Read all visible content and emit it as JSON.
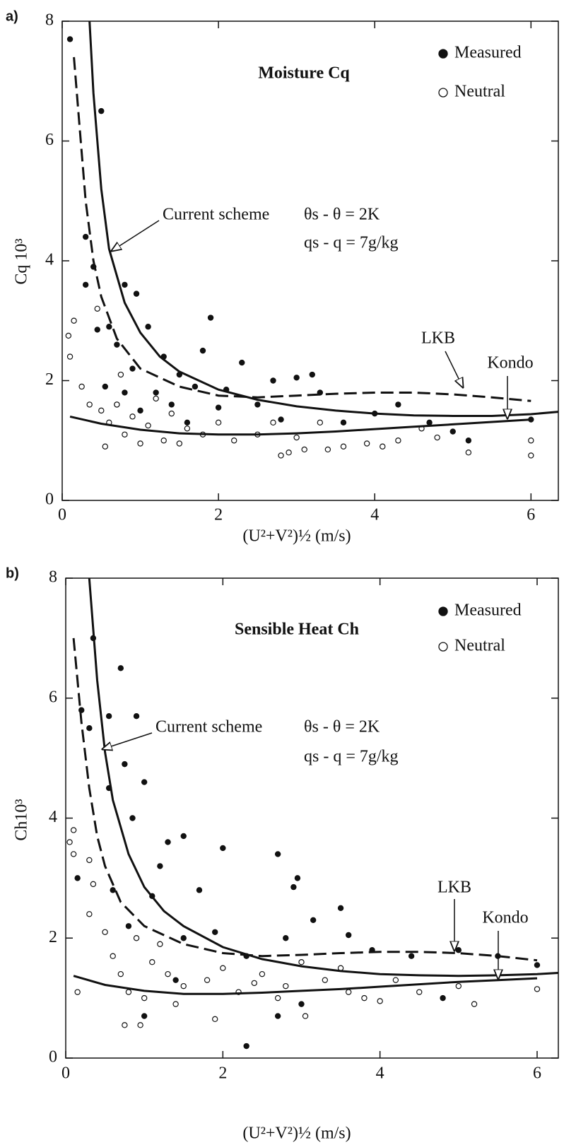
{
  "chart_data": [
    {
      "type": "scatter",
      "panel_label": "a)",
      "title": "Moisture Cq",
      "xlabel": "(U²+V²)½ (m/s)",
      "ylabel": "Cq 10³",
      "annotations": [
        "θs - θ = 2K",
        "qs - q = 7g/kg"
      ],
      "xlim": [
        0,
        6.35
      ],
      "ylim": [
        0,
        8
      ],
      "xticks": [
        0,
        2,
        4,
        6
      ],
      "yticks": [
        0,
        2,
        4,
        6,
        8
      ],
      "series": [
        {
          "name": "Measured",
          "type": "scatter",
          "marker": "filled",
          "color": "#111111",
          "x": [
            0.1,
            0.5,
            0.3,
            0.4,
            0.3,
            0.8,
            0.95,
            0.45,
            0.6,
            0.7,
            1.1,
            1.9,
            1.8,
            1.3,
            0.9,
            1.5,
            2.3,
            0.55,
            0.8,
            1.2,
            1.7,
            2.1,
            2.7,
            3.0,
            3.2,
            0.7,
            1.0,
            1.4,
            2.0,
            2.5,
            3.3,
            3.6,
            4.0,
            4.3,
            4.7,
            5.0,
            5.2,
            6.0,
            2.8,
            1.6
          ],
          "values": [
            7.7,
            6.5,
            4.4,
            3.9,
            3.6,
            3.6,
            3.45,
            2.85,
            2.9,
            2.6,
            2.9,
            3.05,
            2.5,
            2.4,
            2.2,
            2.1,
            2.3,
            1.9,
            1.8,
            1.8,
            1.9,
            1.85,
            2.0,
            2.05,
            2.1,
            1.6,
            1.5,
            1.6,
            1.55,
            1.6,
            1.8,
            1.3,
            1.45,
            1.6,
            1.3,
            1.15,
            1.0,
            1.35,
            1.35,
            1.3
          ]
        },
        {
          "name": "Neutral",
          "type": "scatter",
          "marker": "open",
          "color": "#111111",
          "x": [
            0.08,
            0.15,
            0.1,
            0.45,
            0.25,
            0.35,
            0.5,
            0.6,
            0.55,
            0.75,
            0.8,
            0.9,
            1.0,
            1.1,
            1.3,
            1.5,
            1.2,
            1.6,
            1.8,
            2.0,
            2.2,
            2.5,
            2.7,
            2.8,
            2.9,
            3.0,
            3.1,
            3.4,
            3.6,
            3.9,
            4.1,
            4.3,
            4.8,
            5.2,
            6.0,
            6.0,
            4.6,
            3.3,
            0.7,
            1.4
          ],
          "values": [
            2.75,
            3.0,
            2.4,
            3.2,
            1.9,
            1.6,
            1.5,
            1.3,
            0.9,
            2.1,
            1.1,
            1.4,
            0.95,
            1.25,
            1.0,
            0.95,
            1.7,
            1.2,
            1.1,
            1.3,
            1.0,
            1.1,
            1.3,
            0.75,
            0.8,
            1.05,
            0.85,
            0.85,
            0.9,
            0.95,
            0.9,
            1.0,
            1.05,
            0.8,
            0.75,
            1.0,
            1.2,
            1.3,
            1.6,
            1.45
          ]
        },
        {
          "name": "Current scheme",
          "type": "line",
          "style": "solid",
          "color": "#111111",
          "x": [
            0.35,
            0.4,
            0.5,
            0.6,
            0.8,
            1.0,
            1.25,
            1.5,
            2,
            2.5,
            3,
            3.5,
            4,
            4.5,
            5,
            5.5,
            6,
            6.35
          ],
          "values": [
            8,
            6.8,
            5.2,
            4.2,
            3.3,
            2.8,
            2.4,
            2.15,
            1.85,
            1.68,
            1.57,
            1.5,
            1.45,
            1.42,
            1.41,
            1.41,
            1.44,
            1.48
          ]
        },
        {
          "name": "LKB",
          "type": "line",
          "style": "dashed",
          "color": "#111111",
          "x": [
            0.15,
            0.2,
            0.3,
            0.4,
            0.5,
            0.7,
            1,
            1.5,
            2,
            2.5,
            3,
            3.5,
            4,
            4.5,
            5,
            5.5,
            6
          ],
          "values": [
            7.4,
            6.6,
            5.0,
            4.0,
            3.4,
            2.7,
            2.2,
            1.9,
            1.75,
            1.72,
            1.75,
            1.78,
            1.8,
            1.8,
            1.77,
            1.72,
            1.66
          ]
        },
        {
          "name": "Kondo",
          "type": "line",
          "style": "solid",
          "color": "#111111",
          "x": [
            0.1,
            0.5,
            1,
            1.5,
            2,
            2.5,
            3,
            3.5,
            4,
            4.5,
            5,
            5.5,
            6
          ],
          "values": [
            1.4,
            1.28,
            1.18,
            1.12,
            1.1,
            1.1,
            1.12,
            1.15,
            1.19,
            1.23,
            1.27,
            1.31,
            1.35
          ]
        }
      ]
    },
    {
      "type": "scatter",
      "panel_label": "b)",
      "title": "Sensible Heat Ch",
      "xlabel": "(U²+V²)½ (m/s)",
      "ylabel": "Ch10³",
      "annotations": [
        "θs - θ = 2K",
        "qs - q = 7g/kg"
      ],
      "xlim": [
        0,
        6.27
      ],
      "ylim": [
        0,
        8
      ],
      "xticks": [
        0,
        2,
        4,
        6
      ],
      "yticks": [
        0,
        2,
        4,
        6,
        8
      ],
      "series": [
        {
          "name": "Measured",
          "type": "scatter",
          "marker": "filled",
          "color": "#111111",
          "x": [
            0.35,
            0.7,
            0.9,
            0.55,
            0.3,
            0.2,
            0.75,
            1.0,
            0.55,
            0.85,
            1.3,
            1.5,
            2.0,
            1.2,
            0.15,
            0.6,
            1.1,
            1.7,
            2.7,
            2.95,
            2.9,
            3.5,
            3.15,
            3.6,
            2.8,
            1.9,
            1.5,
            0.8,
            2.3,
            3.9,
            4.4,
            5.0,
            5.5,
            6.0,
            4.8,
            3.0,
            2.7,
            2.3,
            1.0,
            1.4
          ],
          "values": [
            7.0,
            6.5,
            5.7,
            5.7,
            5.5,
            5.8,
            4.9,
            4.6,
            4.5,
            4.0,
            3.6,
            3.7,
            3.5,
            3.2,
            3.0,
            2.8,
            2.7,
            2.8,
            3.4,
            3.0,
            2.85,
            2.5,
            2.3,
            2.05,
            2.0,
            2.1,
            2.0,
            2.2,
            1.7,
            1.8,
            1.7,
            1.8,
            1.7,
            1.55,
            1.0,
            0.9,
            0.7,
            0.2,
            0.7,
            1.3
          ]
        },
        {
          "name": "Neutral",
          "type": "scatter",
          "marker": "open",
          "color": "#111111",
          "x": [
            0.05,
            0.1,
            0.1,
            0.3,
            0.35,
            0.3,
            0.15,
            0.5,
            0.6,
            0.7,
            0.8,
            0.75,
            0.95,
            1.0,
            1.2,
            1.3,
            1.5,
            1.4,
            1.8,
            2.0,
            1.9,
            2.2,
            2.5,
            2.7,
            3.0,
            3.05,
            3.3,
            3.6,
            3.8,
            4.0,
            4.2,
            4.5,
            5.0,
            5.2,
            6.0,
            3.5,
            2.4,
            1.1,
            0.9,
            2.8
          ],
          "values": [
            3.6,
            3.8,
            3.4,
            3.3,
            2.9,
            2.4,
            1.1,
            2.1,
            1.7,
            1.4,
            1.1,
            0.55,
            0.55,
            1.0,
            1.9,
            1.4,
            1.2,
            0.9,
            1.3,
            1.5,
            0.65,
            1.1,
            1.4,
            1.0,
            1.6,
            0.7,
            1.3,
            1.1,
            1.0,
            0.95,
            1.3,
            1.1,
            1.2,
            0.9,
            1.15,
            1.5,
            1.25,
            1.6,
            2.0,
            1.2
          ]
        },
        {
          "name": "Current scheme",
          "type": "line",
          "style": "solid",
          "color": "#111111",
          "x": [
            0.3,
            0.4,
            0.5,
            0.6,
            0.8,
            1,
            1.25,
            1.5,
            2,
            2.5,
            3,
            3.5,
            4,
            4.5,
            5,
            5.5,
            6,
            6.27
          ],
          "values": [
            8,
            6.3,
            5.1,
            4.3,
            3.4,
            2.85,
            2.45,
            2.2,
            1.85,
            1.65,
            1.53,
            1.45,
            1.4,
            1.38,
            1.37,
            1.38,
            1.4,
            1.42
          ]
        },
        {
          "name": "LKB",
          "type": "line",
          "style": "dashed",
          "color": "#111111",
          "x": [
            0.1,
            0.2,
            0.3,
            0.4,
            0.5,
            0.7,
            1,
            1.5,
            2,
            2.5,
            3,
            3.5,
            4,
            4.5,
            5,
            5.5,
            6
          ],
          "values": [
            7,
            5.6,
            4.5,
            3.7,
            3.2,
            2.6,
            2.2,
            1.9,
            1.75,
            1.7,
            1.72,
            1.75,
            1.77,
            1.77,
            1.75,
            1.7,
            1.63
          ]
        },
        {
          "name": "Kondo",
          "type": "line",
          "style": "solid",
          "color": "#111111",
          "x": [
            0.1,
            0.5,
            1,
            1.5,
            2,
            2.5,
            3,
            3.5,
            4,
            4.5,
            5,
            5.5,
            6
          ],
          "values": [
            1.37,
            1.22,
            1.12,
            1.07,
            1.07,
            1.09,
            1.12,
            1.15,
            1.19,
            1.23,
            1.27,
            1.3,
            1.33
          ]
        }
      ]
    }
  ]
}
